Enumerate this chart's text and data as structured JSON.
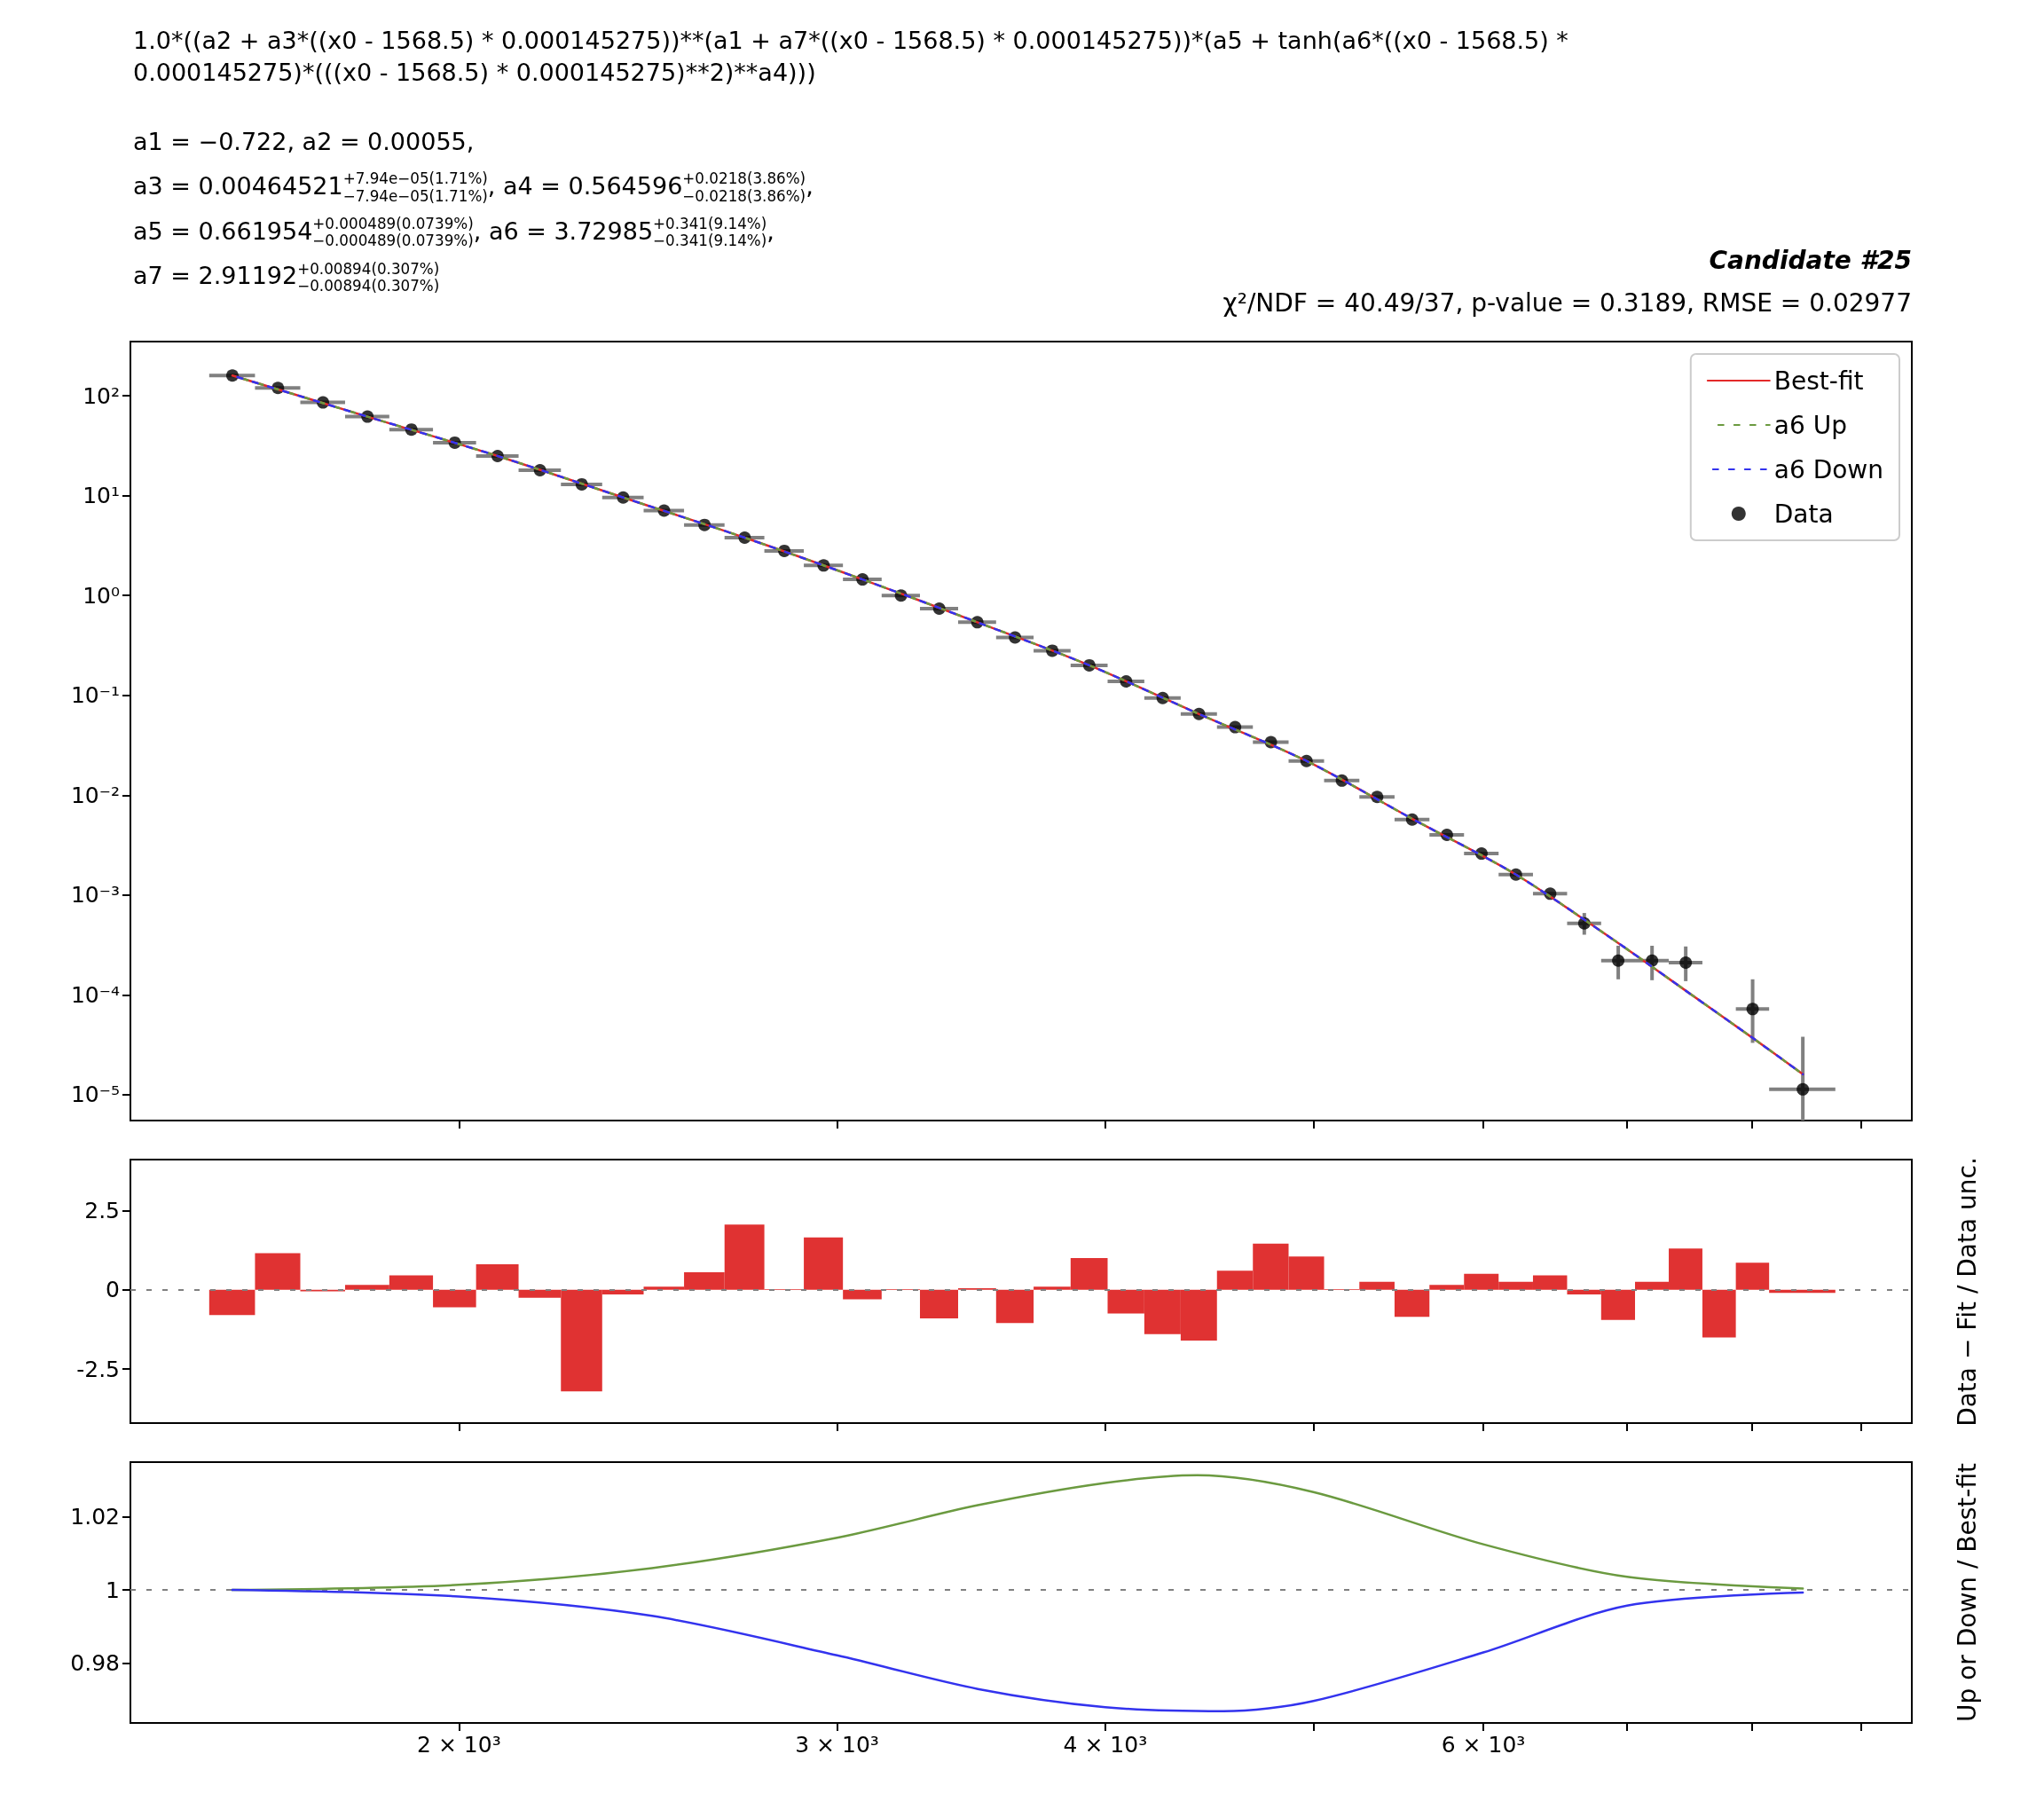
{
  "chart_data": [
    {
      "type": "scatter",
      "title": "Candidate #25",
      "subtitle": "χ²/NDF = 40.49/37, p-value = 0.3189, RMSE = 0.02977",
      "annotations": [
        "1.0*((a2 + a3*((x0 - 1568.5) * 0.000145275))**(a1 + a7*((x0 - 1568.5) * 0.000145275))*(a5 + tanh(a6*((x0 - 1568.5) * 0.000145275)*(((x0 - 1568.5) * 0.000145275)**2)**a4)))",
        "a1 = −0.722,  a2 = 0.00055,",
        "a3 = 0.00464521$^{+7.94e−05(1.71%)}$$_{−7.94e−05(1.71%)}$,  a4 = 0.564596$^{+0.0218(3.86%)}$$_{−0.0218(3.86%)}$,",
        "a5 = 0.661954$^{+0.000489(0.0739%)}$$_{−0.000489(0.0739%)}$,  a6 = 3.72985$^{+0.341(9.14%)}$$_{−0.341(9.14%)}$,",
        "a7 = 2.91192$^{+0.00894(0.307%)}$$_{−0.00894(0.307%)}$"
      ],
      "log": "xy",
      "xlim": [
        1406,
        9500
      ],
      "ylim": [
        5.5e-06,
        350
      ],
      "xticks": [
        {
          "value": 2000,
          "label": null
        },
        {
          "value": 3000,
          "label": null
        },
        {
          "value": 4000,
          "label": null
        },
        {
          "value": 5000,
          "label": null
        },
        {
          "value": 6000,
          "label": null
        },
        {
          "value": 7000,
          "label": null
        },
        {
          "value": 8000,
          "label": null
        },
        {
          "value": 9000,
          "label": null
        }
      ],
      "yticks": [
        {
          "value": 1e-05,
          "label": "10⁻⁵"
        },
        {
          "value": 0.0001,
          "label": "10⁻⁴"
        },
        {
          "value": 0.001,
          "label": "10⁻³"
        },
        {
          "value": 0.01,
          "label": "10⁻²"
        },
        {
          "value": 0.1,
          "label": "10⁻¹"
        },
        {
          "value": 1,
          "label": "10⁰"
        },
        {
          "value": 10,
          "label": "10¹"
        },
        {
          "value": 100,
          "label": "10²"
        }
      ],
      "tick_labels": "y",
      "legend": "top right",
      "grid": false,
      "series": [
        {
          "type": "line",
          "name": "Best-fit",
          "color": "#e32a2a",
          "line_style": "solid",
          "marker": "none",
          "x": [
            1568.5,
            1813,
            2084.5,
            2385,
            2717,
            3083,
            3487,
            3932,
            4423,
            4963.5,
            5559,
            6213.5,
            6934,
            7454.5,
            8009,
            8452
          ],
          "values": [
            160,
            62,
            25,
            9.6,
            3.8,
            1.45,
            0.54,
            0.2,
            0.065,
            0.022,
            0.0058,
            0.0016,
            0.00033,
            0.00011,
            3.7e-05,
            1.6e-05
          ]
        },
        {
          "type": "line",
          "name": "a6 Up",
          "color": "#6b9a40",
          "line_style": "dashed",
          "marker": "none",
          "x": [
            1568.5,
            1813,
            2084.5,
            2385,
            2717,
            3083,
            3487,
            3932,
            4423,
            4963.5,
            5559,
            6213.5,
            6934,
            7454.5,
            8009,
            8452
          ],
          "values": [
            160,
            62,
            25,
            9.6,
            3.8,
            1.45,
            0.54,
            0.2,
            0.065,
            0.022,
            0.0058,
            0.0016,
            0.00033,
            0.00011,
            3.7e-05,
            1.6e-05
          ]
        },
        {
          "type": "line",
          "name": "a6 Down",
          "color": "#3333ee",
          "line_style": "dashed",
          "marker": "none",
          "x": [
            1568.5,
            1813,
            2084.5,
            2385,
            2717,
            3083,
            3487,
            3932,
            4423,
            4963.5,
            5559,
            6213.5,
            6934,
            7454.5,
            8009,
            8452
          ],
          "values": [
            160,
            62,
            25,
            9.6,
            3.8,
            1.45,
            0.54,
            0.2,
            0.065,
            0.022,
            0.0058,
            0.0016,
            0.00033,
            0.00011,
            3.7e-05,
            1.6e-05
          ]
        },
        {
          "type": "scatter",
          "name": "Data",
          "color": "#000000",
          "marker": "circle",
          "x": [
            1568.5,
            1647,
            1728.5,
            1813,
            1900.5,
            1991,
            2084.5,
            2181.5,
            2281.5,
            2385,
            2492,
            2602.5,
            2717,
            2835,
            2957,
            3083,
            3213,
            3347.5,
            3487,
            3631,
            3779,
            3932,
            4090.5,
            4254,
            4423,
            4597.5,
            4777.5,
            4963.5,
            5155.5,
            5354,
            5559,
            5770,
            5988,
            6213.5,
            6446,
            6686,
            6934,
            7190,
            7454.5,
            8009,
            8452
          ],
          "values": [
            160,
            120,
            86,
            62,
            46,
            34,
            25,
            18,
            13,
            9.6,
            7.1,
            5.1,
            3.8,
            2.8,
            2.0,
            1.45,
            1.0,
            0.74,
            0.54,
            0.38,
            0.28,
            0.2,
            0.138,
            0.094,
            0.065,
            0.048,
            0.034,
            0.022,
            0.014,
            0.0096,
            0.0057,
            0.004,
            0.0026,
            0.0016,
            0.00103,
            0.00052,
            0.00022,
            0.00022,
            0.00021,
            7.2e-05,
            1.13e-05
          ],
          "errors": [
            null,
            null,
            null,
            null,
            null,
            null,
            null,
            null,
            null,
            null,
            null,
            null,
            null,
            null,
            null,
            null,
            null,
            null,
            null,
            null,
            null,
            null,
            null,
            null,
            null,
            null,
            null,
            null,
            null,
            null,
            null,
            null,
            null,
            null,
            null,
            [
              0.0004,
              0.00066
            ],
            [
              0.000143,
              0.00031
            ],
            [
              0.00014,
              0.00031
            ],
            [
              0.000137,
              0.000305
            ],
            [
              3.3e-05,
              0.000143
            ],
            [
              5.5e-06,
              3.8e-05
            ]
          ],
          "xerrors": [
            38.5,
            40,
            41.5,
            43,
            44.5,
            46,
            47.5,
            49.5,
            50.5,
            53,
            54,
            56.5,
            58,
            60,
            62,
            64,
            66,
            68.5,
            71,
            73,
            75,
            78,
            80.5,
            83,
            86,
            88.5,
            91.5,
            94.5,
            97.5,
            101,
            104,
            107,
            111,
            114.5,
            118,
            122,
            126,
            130,
            134.5,
            143,
            300
          ]
        }
      ]
    },
    {
      "type": "histogram",
      "ylabel": "Data − Fit / Data unc.",
      "log": "x",
      "xlim": [
        1406,
        9500
      ],
      "ylim": [
        -4.2,
        4.1
      ],
      "xticks": [
        {
          "value": 2000,
          "label": null
        },
        {
          "value": 3000,
          "label": null
        },
        {
          "value": 4000,
          "label": null
        },
        {
          "value": 5000,
          "label": null
        },
        {
          "value": 6000,
          "label": null
        },
        {
          "value": 7000,
          "label": null
        },
        {
          "value": 8000,
          "label": null
        },
        {
          "value": 9000,
          "label": null
        }
      ],
      "yticks": [
        -2.5,
        0,
        2.5
      ],
      "tick_labels": "y",
      "grid": false,
      "color": "#e03232",
      "bins": [
        1530,
        1607,
        1687,
        1770,
        1856,
        1945,
        2037,
        2132,
        2231,
        2332,
        2438,
        2546,
        2659,
        2775,
        2895,
        3019,
        3147,
        3279,
        3416,
        3558,
        3704,
        3854,
        4010,
        4171,
        4337,
        4509,
        4686,
        4869,
        5058,
        5253,
        5455,
        5663,
        5877,
        6099,
        6328,
        6564,
        6808,
        7060,
        7320,
        7589,
        7866,
        8152,
        8752
      ],
      "values": [
        -0.8,
        1.15,
        -0.05,
        0.15,
        0.45,
        -0.55,
        0.8,
        -0.25,
        -3.2,
        -0.15,
        0.1,
        0.55,
        2.05,
        0.02,
        1.65,
        -0.3,
        0.02,
        -0.9,
        0.05,
        -1.05,
        0.1,
        1.0,
        -0.75,
        -1.4,
        -1.6,
        0.6,
        1.45,
        1.05,
        0.02,
        0.25,
        -0.85,
        0.15,
        0.5,
        0.25,
        0.45,
        -0.15,
        -0.95,
        0.25,
        1.3,
        -1.5,
        0.85,
        -0.1
      ],
      "ref_lines": [
        {
          "axis": "y",
          "value": 0,
          "color": "#808080",
          "line_style": "dashed"
        }
      ]
    },
    {
      "type": "line",
      "ylabel": "Up or Down / Best-fit",
      "log": "x",
      "xlim": [
        1406,
        9500
      ],
      "ylim": [
        0.9636,
        1.035
      ],
      "xticks": [
        {
          "value": 2000,
          "label": "2 × 10³"
        },
        {
          "value": 3000,
          "label": "3 × 10³"
        },
        {
          "value": 4000,
          "label": "4 × 10³"
        },
        {
          "value": 5000,
          "label": null
        },
        {
          "value": 6000,
          "label": "6 × 10³"
        },
        {
          "value": 7000,
          "label": null
        },
        {
          "value": 8000,
          "label": null
        },
        {
          "value": 9000,
          "label": null
        }
      ],
      "yticks": [
        0.98,
        1,
        1.02
      ],
      "grid": false,
      "marker": "none",
      "line_style": "solid",
      "series": [
        {
          "color": "#6b9a40",
          "x": [
            1568.5,
            2000,
            2460,
            3000,
            3489,
            4000,
            4415,
            5000,
            6000,
            7000,
            8452
          ],
          "values": [
            1.0,
            1.0014,
            1.006,
            1.0143,
            1.0232,
            1.0293,
            1.0314,
            1.0268,
            1.0125,
            1.0036,
            1.0004
          ]
        },
        {
          "color": "#3333ee",
          "x": [
            1568.5,
            2000,
            2460,
            3000,
            3489,
            4000,
            4540,
            5000,
            6000,
            7000,
            8452
          ],
          "values": [
            1.0,
            0.9982,
            0.9929,
            0.9821,
            0.9729,
            0.9679,
            0.9668,
            0.9696,
            0.9829,
            0.9957,
            0.9993
          ]
        }
      ],
      "ref_lines": [
        {
          "axis": "y",
          "value": 1,
          "color": "#808080",
          "line_style": "dashed"
        }
      ]
    }
  ]
}
